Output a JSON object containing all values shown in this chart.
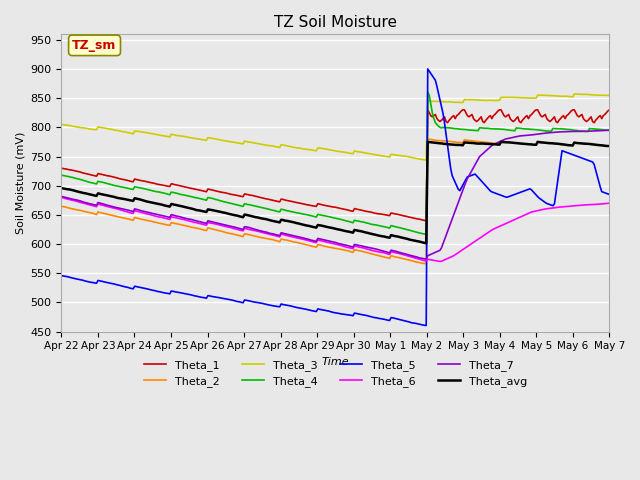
{
  "title": "TZ Soil Moisture",
  "ylabel": "Soil Moisture (mV)",
  "xlabel": "Time",
  "ylim": [
    450,
    960
  ],
  "yticks": [
    450,
    500,
    550,
    600,
    650,
    700,
    750,
    800,
    850,
    900,
    950
  ],
  "background_color": "#e8e8e8",
  "plot_bg_color": "#e8e8e8",
  "grid_color": "#ffffff",
  "series_colors": {
    "Theta_1": "#cc0000",
    "Theta_2": "#ff8800",
    "Theta_3": "#cccc00",
    "Theta_4": "#00bb00",
    "Theta_5": "#0000ff",
    "Theta_6": "#ff00ff",
    "Theta_7": "#8800cc",
    "Theta_avg": "#000000"
  },
  "legend_box_color": "#ffffcc",
  "legend_box_text": "TZ_sm",
  "n_days_before": 10,
  "n_days_after": 5,
  "spike_day": 10,
  "date_labels": [
    "Apr 22",
    "Apr 23",
    "Apr 24",
    "Apr 25",
    "Apr 26",
    "Apr 27",
    "Apr 28",
    "Apr 29",
    "Apr 30",
    "May 1",
    "May 2",
    "May 3",
    "May 4",
    "May 5",
    "May 6",
    "May 7"
  ]
}
